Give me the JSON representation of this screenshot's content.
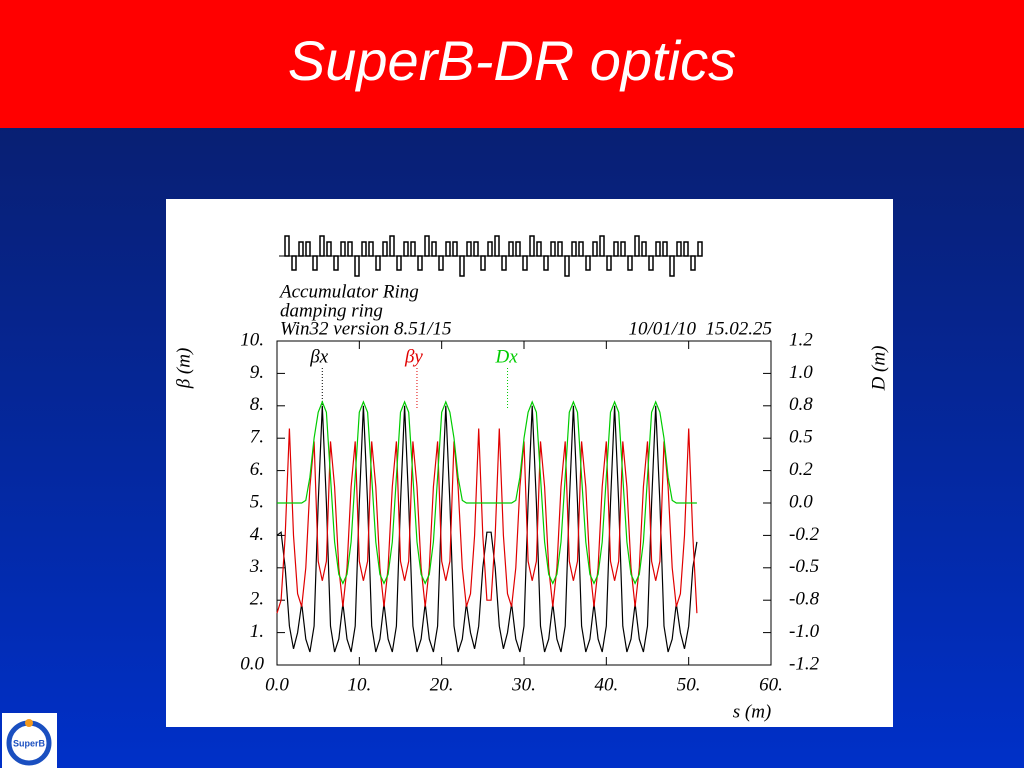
{
  "slide_title": "SuperB-DR optics",
  "logo_text": "SuperB",
  "chart_data": {
    "type": "line",
    "annotations": [
      "Accumulator Ring",
      "damping ring",
      "Win32 version 8.51/15",
      "10/01/10  15.02.25"
    ],
    "x_label": "s (m)",
    "y_label": "β (m)",
    "y2_label": "D (m)",
    "xlim": [
      0,
      60
    ],
    "xticks": [
      {
        "value": 0,
        "label": "0.0"
      },
      {
        "value": 10,
        "label": "10."
      },
      {
        "value": 20,
        "label": "20."
      },
      {
        "value": 30,
        "label": "30."
      },
      {
        "value": 40,
        "label": "40."
      },
      {
        "value": 50,
        "label": "50."
      },
      {
        "value": 60,
        "label": "60."
      }
    ],
    "ylim": [
      0,
      10
    ],
    "yticks": [
      {
        "value": 0,
        "label": "0.0"
      },
      {
        "value": 1,
        "label": "1."
      },
      {
        "value": 2,
        "label": "2."
      },
      {
        "value": 3,
        "label": "3."
      },
      {
        "value": 4,
        "label": "4."
      },
      {
        "value": 5,
        "label": "5."
      },
      {
        "value": 6,
        "label": "6."
      },
      {
        "value": 7,
        "label": "7."
      },
      {
        "value": 8,
        "label": "8."
      },
      {
        "value": 9,
        "label": "9."
      },
      {
        "value": 10,
        "label": "10."
      }
    ],
    "y2lim": [
      -1.25,
      1.25
    ],
    "y2ticks": [
      {
        "value": -1.25,
        "label": "-1.2"
      },
      {
        "value": -1.0,
        "label": "-1.0"
      },
      {
        "value": -0.75,
        "label": "-0.8"
      },
      {
        "value": -0.5,
        "label": "-0.5"
      },
      {
        "value": -0.25,
        "label": "-0.2"
      },
      {
        "value": 0,
        "label": "0.0"
      },
      {
        "value": 0.25,
        "label": "0.2"
      },
      {
        "value": 0.5,
        "label": "0.5"
      },
      {
        "value": 0.75,
        "label": "0.8"
      },
      {
        "value": 1.0,
        "label": "1.0"
      },
      {
        "value": 1.25,
        "label": "1.2"
      }
    ],
    "x": [
      0,
      0.5,
      1,
      1.5,
      2,
      2.5,
      3,
      3.5,
      4,
      4.5,
      5,
      5.5,
      6,
      6.5,
      7,
      7.5,
      8,
      8.5,
      9,
      9.5,
      10,
      10.5,
      11,
      11.5,
      12,
      12.5,
      13,
      13.5,
      14,
      14.5,
      15,
      15.5,
      16,
      16.5,
      17,
      17.5,
      18,
      18.5,
      19,
      19.5,
      20,
      20.5,
      21,
      21.5,
      22,
      22.5,
      23,
      23.5,
      24,
      24.5,
      25,
      25.5,
      26,
      26.5,
      27,
      27.5,
      28,
      28.5,
      29,
      29.5,
      30,
      30.5,
      31,
      31.5,
      32,
      32.5,
      33,
      33.5,
      34,
      34.5,
      35,
      35.5,
      36,
      36.5,
      37,
      37.5,
      38,
      38.5,
      39,
      39.5,
      40,
      40.5,
      41,
      41.5,
      42,
      42.5,
      43,
      43.5,
      44,
      44.5,
      45,
      45.5,
      46,
      46.5,
      47,
      47.5,
      48,
      48.5,
      49,
      49.5,
      50,
      50.5,
      51
    ],
    "series": [
      {
        "name": "βx",
        "color": "#000000",
        "legend_x": 5.5,
        "values": [
          4.0,
          4.1,
          3.0,
          1.2,
          0.5,
          1.0,
          1.9,
          0.8,
          0.4,
          1.2,
          5.0,
          8.0,
          5.0,
          1.2,
          0.4,
          0.8,
          1.9,
          0.8,
          0.4,
          1.2,
          5.0,
          8.0,
          5.0,
          1.2,
          0.4,
          0.8,
          1.9,
          0.8,
          0.4,
          1.2,
          5.0,
          8.0,
          5.0,
          1.2,
          0.4,
          0.8,
          1.9,
          0.8,
          0.4,
          1.2,
          5.0,
          8.0,
          5.0,
          1.2,
          0.4,
          0.8,
          1.9,
          1.0,
          0.5,
          1.2,
          3.0,
          4.1,
          4.1,
          3.0,
          1.2,
          0.5,
          1.0,
          1.9,
          0.8,
          0.4,
          1.2,
          5.0,
          8.0,
          5.0,
          1.2,
          0.4,
          0.8,
          1.9,
          0.8,
          0.4,
          1.2,
          5.0,
          8.0,
          5.0,
          1.2,
          0.4,
          0.8,
          1.9,
          0.8,
          0.4,
          1.2,
          5.0,
          8.0,
          5.0,
          1.2,
          0.4,
          0.8,
          1.9,
          0.8,
          0.4,
          1.2,
          5.0,
          8.0,
          5.0,
          1.2,
          0.4,
          0.8,
          1.9,
          1.0,
          0.5,
          1.2,
          3.0,
          3.8
        ]
      },
      {
        "name": "βy",
        "color": "#e00000",
        "legend_x": 17,
        "values": [
          1.6,
          2.0,
          4.0,
          7.3,
          4.0,
          2.2,
          1.8,
          3.0,
          5.5,
          6.9,
          3.2,
          2.6,
          3.2,
          6.9,
          5.5,
          3.0,
          1.8,
          3.0,
          5.5,
          6.9,
          3.2,
          2.6,
          3.2,
          6.9,
          5.5,
          3.0,
          1.8,
          3.0,
          5.5,
          6.9,
          3.2,
          2.6,
          3.2,
          6.9,
          5.5,
          3.0,
          1.8,
          3.0,
          5.5,
          6.9,
          3.2,
          2.6,
          3.2,
          6.9,
          5.5,
          3.0,
          1.8,
          2.2,
          4.0,
          7.3,
          4.0,
          2.0,
          2.0,
          4.0,
          7.3,
          4.0,
          2.2,
          1.8,
          3.0,
          5.5,
          6.9,
          3.2,
          2.6,
          3.2,
          6.9,
          5.5,
          3.0,
          1.8,
          3.0,
          5.5,
          6.9,
          3.2,
          2.6,
          3.2,
          6.9,
          5.5,
          3.0,
          1.8,
          3.0,
          5.5,
          6.9,
          3.2,
          2.6,
          3.2,
          6.9,
          5.5,
          3.0,
          1.8,
          3.0,
          5.5,
          6.9,
          3.2,
          2.6,
          3.2,
          6.9,
          5.5,
          3.0,
          1.8,
          2.2,
          4.0,
          7.3,
          4.0,
          1.6
        ]
      },
      {
        "name": "Dx",
        "color": "#00cc00",
        "axis": "y2",
        "legend_x": 28,
        "values": [
          0,
          0,
          0,
          0,
          0,
          0,
          0,
          0.02,
          0.2,
          0.5,
          0.7,
          0.78,
          0.7,
          0.2,
          -0.3,
          -0.55,
          -0.62,
          -0.55,
          -0.3,
          0.2,
          0.7,
          0.78,
          0.7,
          0.2,
          -0.3,
          -0.55,
          -0.62,
          -0.55,
          -0.3,
          0.2,
          0.7,
          0.78,
          0.7,
          0.2,
          -0.3,
          -0.55,
          -0.62,
          -0.55,
          -0.3,
          0.2,
          0.7,
          0.78,
          0.7,
          0.5,
          0.2,
          0.02,
          0,
          0,
          0,
          0,
          0,
          0,
          0,
          0,
          0,
          0,
          0,
          0,
          0.02,
          0.2,
          0.5,
          0.7,
          0.78,
          0.7,
          0.2,
          -0.3,
          -0.55,
          -0.62,
          -0.55,
          -0.3,
          0.2,
          0.7,
          0.78,
          0.7,
          0.2,
          -0.3,
          -0.55,
          -0.62,
          -0.55,
          -0.3,
          0.2,
          0.7,
          0.78,
          0.7,
          0.2,
          -0.3,
          -0.55,
          -0.62,
          -0.55,
          -0.3,
          0.2,
          0.7,
          0.78,
          0.7,
          0.5,
          0.2,
          0.02,
          0,
          0,
          0,
          0,
          0,
          0
        ]
      }
    ]
  }
}
